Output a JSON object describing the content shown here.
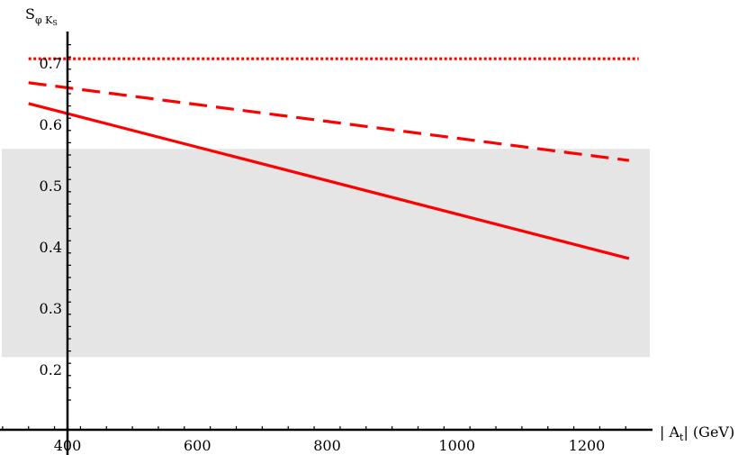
{
  "chart_data": {
    "type": "line",
    "title": "",
    "xlabel": {
      "prefix": "| A",
      "sub": "t",
      "suffix": "|  (GeV)"
    },
    "ylabel": {
      "main": "S",
      "sub": "φ K",
      "subsub": "S"
    },
    "xlim": [
      300,
      1300
    ],
    "ylim": [
      0.2,
      0.75
    ],
    "x_ticks": [
      400,
      600,
      800,
      1000,
      1200
    ],
    "x_tick_labels": [
      "400",
      "600",
      "800",
      "1000",
      "1200"
    ],
    "y_ticks": [
      0.2,
      0.3,
      0.4,
      0.5,
      0.6,
      0.7
    ],
    "y_tick_labels": [
      "0.2",
      "0.3",
      "0.4",
      "0.5",
      "0.6",
      "0.7"
    ],
    "band": {
      "y_low": 0.22,
      "y_high": 0.56,
      "x_low": 300,
      "x_high": 1300,
      "color": "#e5e5e5"
    },
    "series": [
      {
        "style": "dotted",
        "color": "#ff0000",
        "x": [
          340,
          1280
        ],
        "y": [
          0.707,
          0.707
        ]
      },
      {
        "style": "dashed",
        "color": "#ff0000",
        "x": [
          340,
          1265
        ],
        "y": [
          0.668,
          0.541
        ]
      },
      {
        "style": "solid",
        "color": "#ff0000",
        "x": [
          340,
          1265
        ],
        "y": [
          0.634,
          0.381
        ]
      }
    ],
    "grid": false,
    "legend": "none"
  }
}
